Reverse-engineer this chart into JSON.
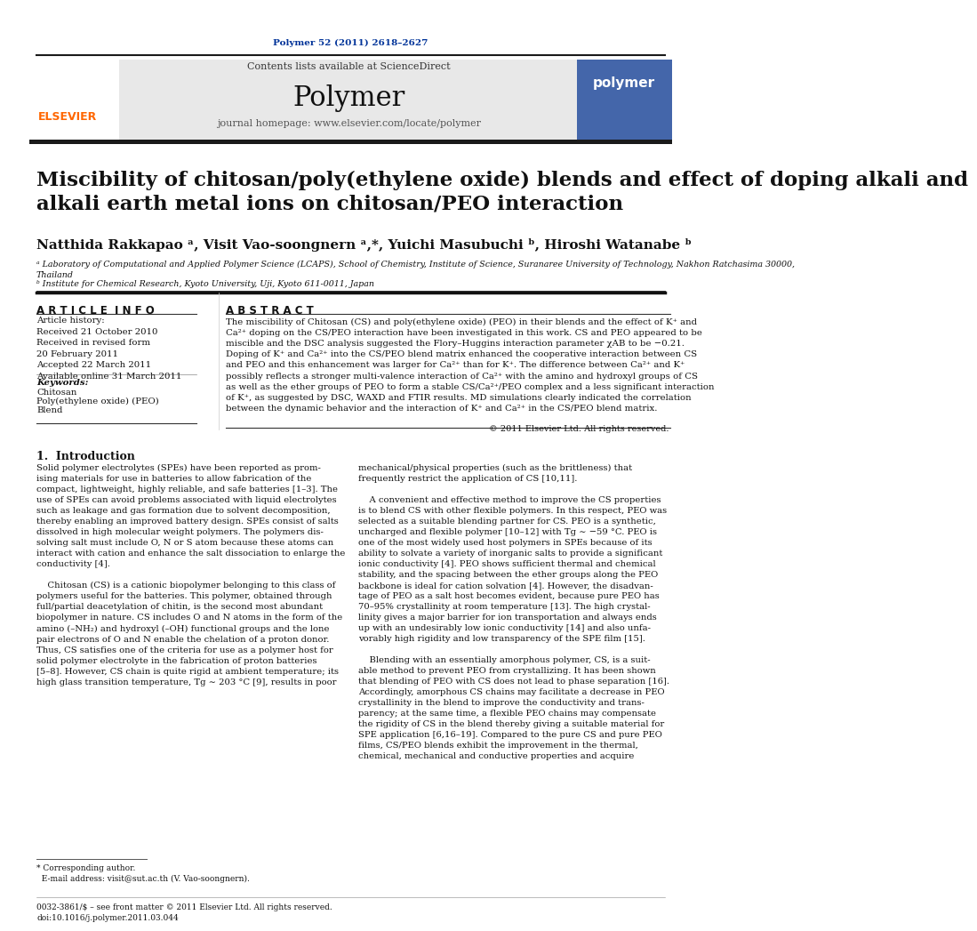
{
  "page_bg": "#ffffff",
  "header_journal_ref": "Polymer 52 (2011) 2618–2627",
  "header_journal_ref_color": "#003399",
  "journal_name": "Polymer",
  "contents_text": "Contents lists available at ",
  "sciencedirect_text": "ScienceDirect",
  "sciencedirect_color": "#2255aa",
  "journal_homepage": "journal homepage: www.elsevier.com/locate/polymer",
  "header_bg": "#e8e8e8",
  "title": "Miscibility of chitosan/poly(ethylene oxide) blends and effect of doping alkali and\nalkali earth metal ions on chitosan/PEO interaction",
  "authors": "Natthida Rakkapao ᵃ, Visit Vao-soongnern ᵃ,*, Yuichi Masubuchi ᵇ, Hiroshi Watanabe ᵇ",
  "affiliation_a": "ᵃ Laboratory of Computational and Applied Polymer Science (LCAPS), School of Chemistry, Institute of Science, Suranaree University of Technology, Nakhon Ratchasima 30000,\nThailand",
  "affiliation_b": "ᵇ Institute for Chemical Research, Kyoto University, Uji, Kyoto 611-0011, Japan",
  "article_info_header": "A R T I C L E  I N F O",
  "abstract_header": "A B S T R A C T",
  "article_history_label": "Article history:",
  "received": "Received 21 October 2010",
  "received_revised": "Received in revised form\n20 February 2011",
  "accepted": "Accepted 22 March 2011",
  "available": "Available online 31 March 2011",
  "keywords_label": "Keywords:",
  "keywords": [
    "Chitosan",
    "Poly(ethylene oxide) (PEO)",
    "Blend"
  ],
  "abstract_text": "The miscibility of Chitosan (CS) and poly(ethylene oxide) (PEO) in their blends and the effect of K⁺ and\nCa²⁺ doping on the CS/PEO interaction have been investigated in this work. CS and PEO appeared to be\nmiscible and the DSC analysis suggested the Flory–Huggins interaction parameter χAB to be −0.21.\nDoping of K⁺ and Ca²⁺ into the CS/PEO blend matrix enhanced the cooperative interaction between CS\nand PEO and this enhancement was larger for Ca²⁺ than for K⁺. The difference between Ca²⁺ and K⁺\npossibly reflects a stronger multi-valence interaction of Ca²⁺ with the amino and hydroxyl groups of CS\nas well as the ether groups of PEO to form a stable CS/Ca²⁺/PEO complex and a less significant interaction\nof K⁺, as suggested by DSC, WAXD and FTIR results. MD simulations clearly indicated the correlation\nbetween the dynamic behavior and the interaction of K⁺ and Ca²⁺ in the CS/PEO blend matrix.",
  "copyright": "© 2011 Elsevier Ltd. All rights reserved.",
  "intro_header": "1.  Introduction",
  "intro_col1": "Solid polymer electrolytes (SPEs) have been reported as prom-\nising materials for use in batteries to allow fabrication of the\ncompact, lightweight, highly reliable, and safe batteries [1–3]. The\nuse of SPEs can avoid problems associated with liquid electrolytes\nsuch as leakage and gas formation due to solvent decomposition,\nthereby enabling an improved battery design. SPEs consist of salts\ndissolved in high molecular weight polymers. The polymers dis-\nsolving salt must include O, N or S atom because these atoms can\ninteract with cation and enhance the salt dissociation to enlarge the\nconductivity [4].\n\n    Chitosan (CS) is a cationic biopolymer belonging to this class of\npolymers useful for the batteries. This polymer, obtained through\nfull/partial deacetylation of chitin, is the second most abundant\nbiopolymer in nature. CS includes O and N atoms in the form of the\namino (–NH₂) and hydroxyl (–OH) functional groups and the lone\npair electrons of O and N enable the chelation of a proton donor.\nThus, CS satisfies one of the criteria for use as a polymer host for\nsolid polymer electrolyte in the fabrication of proton batteries\n[5–8]. However, CS chain is quite rigid at ambient temperature; its\nhigh glass transition temperature, Tg ∼ 203 °C [9], results in poor",
  "intro_col2": "mechanical/physical properties (such as the brittleness) that\nfrequently restrict the application of CS [10,11].\n\n    A convenient and effective method to improve the CS properties\nis to blend CS with other flexible polymers. In this respect, PEO was\nselected as a suitable blending partner for CS. PEO is a synthetic,\nuncharged and flexible polymer [10–12] with Tg ∼ −59 °C. PEO is\none of the most widely used host polymers in SPEs because of its\nability to solvate a variety of inorganic salts to provide a significant\nionic conductivity [4]. PEO shows sufficient thermal and chemical\nstability, and the spacing between the ether groups along the PEO\nbackbone is ideal for cation solvation [4]. However, the disadvan-\ntage of PEO as a salt host becomes evident, because pure PEO has\n70–95% crystallinity at room temperature [13]. The high crystal-\nlinity gives a major barrier for ion transportation and always ends\nup with an undesirably low ionic conductivity [14] and also unfa-\nvorably high rigidity and low transparency of the SPE film [15].\n\n    Blending with an essentially amorphous polymer, CS, is a suit-\nable method to prevent PEO from crystallizing. It has been shown\nthat blending of PEO with CS does not lead to phase separation [16].\nAccordingly, amorphous CS chains may facilitate a decrease in PEO\ncrystallinity in the blend to improve the conductivity and trans-\nparency; at the same time, a flexible PEO chains may compensate\nthe rigidity of CS in the blend thereby giving a suitable material for\nSPE application [6,16–19]. Compared to the pure CS and pure PEO\nfilms, CS/PEO blends exhibit the improvement in the thermal,\nchemical, mechanical and conductive properties and acquire",
  "footnote_text": "* Corresponding author.\n  E-mail address: visit@sut.ac.th (V. Vao-soongnern).",
  "footer_text": "0032-3861/$ – see front matter © 2011 Elsevier Ltd. All rights reserved.\ndoi:10.1016/j.polymer.2011.03.044",
  "ref_color": "#003399",
  "top_bar_color": "#1a1a1a",
  "section_bar_color": "#1a1a1a",
  "elsevier_color": "#FF6600"
}
